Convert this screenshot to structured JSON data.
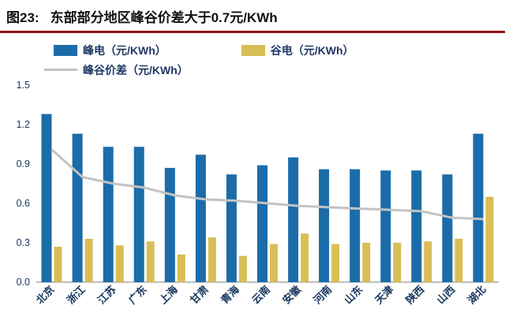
{
  "header": {
    "title_prefix": "图23:",
    "title_text": "东部部分地区峰谷价差大于0.7元/KWh"
  },
  "legend": {
    "peak_label": "峰电（元/KWh）",
    "valley_label": "谷电（元/KWh）",
    "diff_label": "峰谷价差（元/KWh）"
  },
  "colors": {
    "peak": "#1B6CA8",
    "valley": "#D9BE56",
    "diff_line": "#C3C3C3",
    "title_rule": "#8E0E12",
    "axis_text": "#17375E",
    "axis_line": "#7F7F7F"
  },
  "chart_data": {
    "type": "bar",
    "title": "东部部分地区峰谷价差大于0.7元/KWh",
    "categories": [
      "北京",
      "浙江",
      "江苏",
      "广东",
      "上海",
      "甘肃",
      "青海",
      "云南",
      "安徽",
      "河南",
      "山东",
      "天津",
      "陕西",
      "山西",
      "湖北"
    ],
    "series": [
      {
        "name": "峰电（元/KWh）",
        "type": "bar",
        "color_key": "peak",
        "values": [
          1.28,
          1.13,
          1.03,
          1.03,
          0.87,
          0.97,
          0.82,
          0.89,
          0.95,
          0.86,
          0.86,
          0.85,
          0.85,
          0.82,
          1.13
        ]
      },
      {
        "name": "谷电（元/KWh）",
        "type": "bar",
        "color_key": "valley",
        "values": [
          0.27,
          0.33,
          0.28,
          0.31,
          0.21,
          0.34,
          0.2,
          0.29,
          0.37,
          0.29,
          0.3,
          0.3,
          0.31,
          0.33,
          0.65
        ]
      },
      {
        "name": "峰谷价差（元/KWh）",
        "type": "line",
        "color_key": "diff_line",
        "values": [
          1.01,
          0.8,
          0.75,
          0.72,
          0.66,
          0.63,
          0.62,
          0.6,
          0.58,
          0.57,
          0.56,
          0.55,
          0.54,
          0.49,
          0.48
        ]
      }
    ],
    "xlabel": "",
    "ylabel": "",
    "ylim": [
      0,
      1.5
    ],
    "yticks": [
      "0.0",
      "0.3",
      "0.6",
      "0.9",
      "1.2",
      "1.5"
    ],
    "grid": false,
    "legend_position": "top"
  }
}
